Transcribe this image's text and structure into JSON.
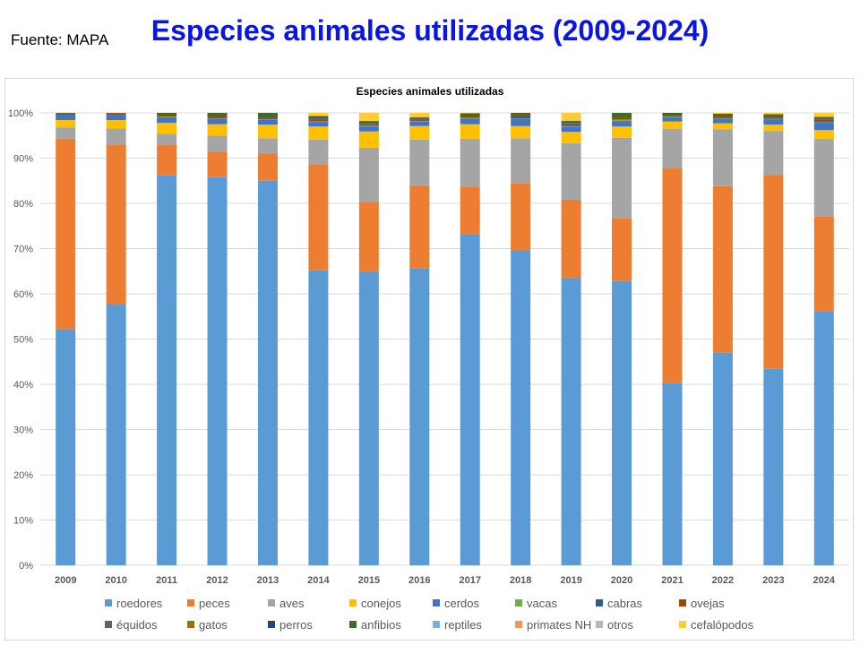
{
  "header": {
    "source": "Fuente: MAPA",
    "title": "Especies animales utilizadas (2009-2024)"
  },
  "chart_data": {
    "type": "bar",
    "stacked": true,
    "normalized": true,
    "title": "Especies animales utilizadas",
    "xlabel": "",
    "ylabel": "",
    "ylim": [
      0,
      100
    ],
    "y_ticks": [
      "0%",
      "10%",
      "20%",
      "30%",
      "40%",
      "50%",
      "60%",
      "70%",
      "80%",
      "90%",
      "100%"
    ],
    "grid": true,
    "legend_position": "bottom",
    "categories": [
      "2009",
      "2010",
      "2011",
      "2012",
      "2013",
      "2014",
      "2015",
      "2016",
      "2017",
      "2018",
      "2019",
      "2020",
      "2021",
      "2022",
      "2023",
      "2024"
    ],
    "series": [
      {
        "name": "roedores",
        "color": "#5B9BD5",
        "values": [
          52.2,
          57.8,
          86.2,
          85.8,
          85.0,
          65.2,
          65.0,
          65.6,
          73.2,
          69.6,
          63.5,
          62.8,
          40.3,
          47.0,
          43.4,
          56.2
        ]
      },
      {
        "name": "peces",
        "color": "#ED7D31",
        "values": [
          42.1,
          35.2,
          6.8,
          5.6,
          6.0,
          23.4,
          15.2,
          18.4,
          10.5,
          14.9,
          17.3,
          13.9,
          47.5,
          36.8,
          42.9,
          20.9
        ]
      },
      {
        "name": "aves",
        "color": "#A5A5A5",
        "values": [
          2.5,
          3.6,
          2.4,
          3.6,
          3.4,
          5.5,
          12.1,
          10.1,
          10.6,
          9.9,
          12.5,
          17.8,
          8.8,
          12.6,
          9.7,
          17.2
        ]
      },
      {
        "name": "conejos",
        "color": "#FFC000",
        "values": [
          1.6,
          1.8,
          2.4,
          2.5,
          3.0,
          2.9,
          3.6,
          3.0,
          3.2,
          2.7,
          2.5,
          2.5,
          1.6,
          1.3,
          1.4,
          1.9
        ]
      },
      {
        "name": "cerdos",
        "color": "#4472C4",
        "values": [
          1.2,
          1.3,
          1.2,
          1.2,
          1.1,
          1.0,
          1.1,
          1.0,
          1.2,
          1.6,
          1.1,
          1.2,
          0.9,
          1.0,
          1.2,
          1.6
        ]
      },
      {
        "name": "vacas",
        "color": "#70AD47",
        "values": [
          0.0,
          0.0,
          0.2,
          0.1,
          0.1,
          0.1,
          0.1,
          0.1,
          0.2,
          0.1,
          0.1,
          0.3,
          0.2,
          0.1,
          0.1,
          0.1
        ]
      },
      {
        "name": "cabras",
        "color": "#255E91",
        "values": [
          0.1,
          0.1,
          0.1,
          0.1,
          0.1,
          0.1,
          0.1,
          0.1,
          0.1,
          0.5,
          0.2,
          0.1,
          0.1,
          0.1,
          0.1,
          0.2
        ]
      },
      {
        "name": "ovejas",
        "color": "#9E480E",
        "values": [
          0.1,
          0.1,
          0.3,
          0.3,
          0.3,
          0.4,
          0.3,
          0.3,
          0.3,
          0.3,
          0.3,
          0.4,
          0.2,
          0.3,
          0.4,
          0.4
        ]
      },
      {
        "name": "équidos",
        "color": "#636363",
        "values": [
          0.0,
          0.0,
          0.1,
          0.0,
          0.0,
          0.1,
          0.1,
          0.1,
          0.0,
          0.1,
          0.2,
          0.0,
          0.1,
          0.1,
          0.1,
          0.2
        ]
      },
      {
        "name": "gatos",
        "color": "#997300",
        "values": [
          0.1,
          0.1,
          0.0,
          0.0,
          0.0,
          0.0,
          0.0,
          0.0,
          0.0,
          0.0,
          0.0,
          0.0,
          0.0,
          0.0,
          0.0,
          0.0
        ]
      },
      {
        "name": "perros",
        "color": "#264478",
        "values": [
          0.0,
          0.0,
          0.1,
          0.0,
          0.0,
          0.1,
          0.1,
          0.1,
          0.1,
          0.1,
          0.1,
          0.0,
          0.1,
          0.1,
          0.1,
          0.1
        ]
      },
      {
        "name": "anfibios",
        "color": "#43682B",
        "values": [
          0.1,
          0.0,
          0.2,
          0.8,
          1.0,
          0.5,
          0.5,
          0.2,
          0.5,
          0.2,
          0.4,
          1.0,
          0.3,
          0.4,
          0.3,
          0.3
        ]
      },
      {
        "name": "reptiles",
        "color": "#7CAFDD",
        "values": [
          0.0,
          0.0,
          0.0,
          0.0,
          0.0,
          0.0,
          0.0,
          0.0,
          0.0,
          0.0,
          0.1,
          0.0,
          0.0,
          0.0,
          0.0,
          0.0
        ]
      },
      {
        "name": "primates NH",
        "color": "#F1975A",
        "values": [
          0.0,
          0.0,
          0.0,
          0.0,
          0.0,
          0.0,
          0.0,
          0.0,
          0.0,
          0.0,
          0.0,
          0.0,
          0.0,
          0.0,
          0.0,
          0.0
        ]
      },
      {
        "name": "otros",
        "color": "#B7B7B7",
        "values": [
          0.0,
          0.0,
          0.0,
          0.0,
          0.0,
          0.0,
          0.0,
          0.0,
          0.0,
          0.0,
          0.0,
          0.0,
          0.0,
          0.0,
          0.0,
          0.0
        ]
      },
      {
        "name": "cefalópodos",
        "color": "#FFCD33",
        "values": [
          0.0,
          0.0,
          0.0,
          0.0,
          0.0,
          0.7,
          1.8,
          1.0,
          0.1,
          0.0,
          1.7,
          0.0,
          0.0,
          0.2,
          0.3,
          0.9
        ]
      }
    ]
  }
}
